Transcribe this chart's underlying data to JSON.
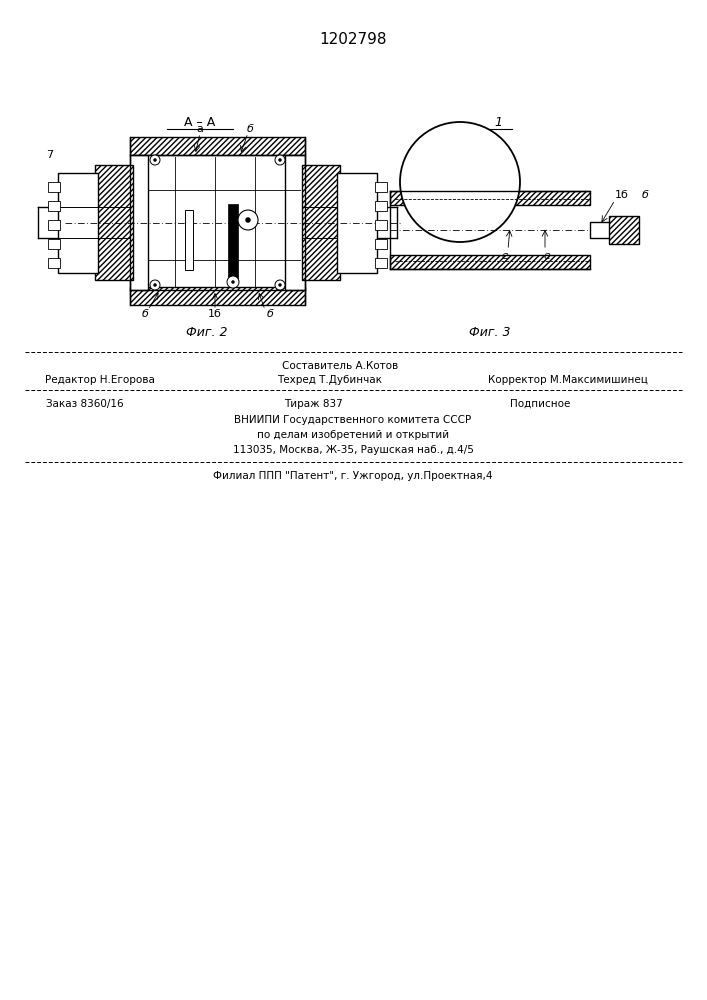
{
  "patent_number": "1202798",
  "bg_color": "#ffffff",
  "footer": {
    "line1_center_top": "Составитель А.Котов",
    "line1_left": "Редактор Н.Егорова",
    "line1_center_bot": "Техред Т.Дубинчак",
    "line1_right": "Корректор М.Максимишинец",
    "line2_left": "Заказ 8360/16",
    "line2_center": "Тираж 837",
    "line2_right": "Подписное",
    "line3": "ВНИИПИ Государственного комитета СССР",
    "line4": "по делам изобретений и открытий",
    "line5": "113035, Москва, Ж-35, Раушская наб., д.4/5",
    "line6": "Филиал ППП \"Патент\", г. Ужгород, ул.Проектная,4"
  }
}
